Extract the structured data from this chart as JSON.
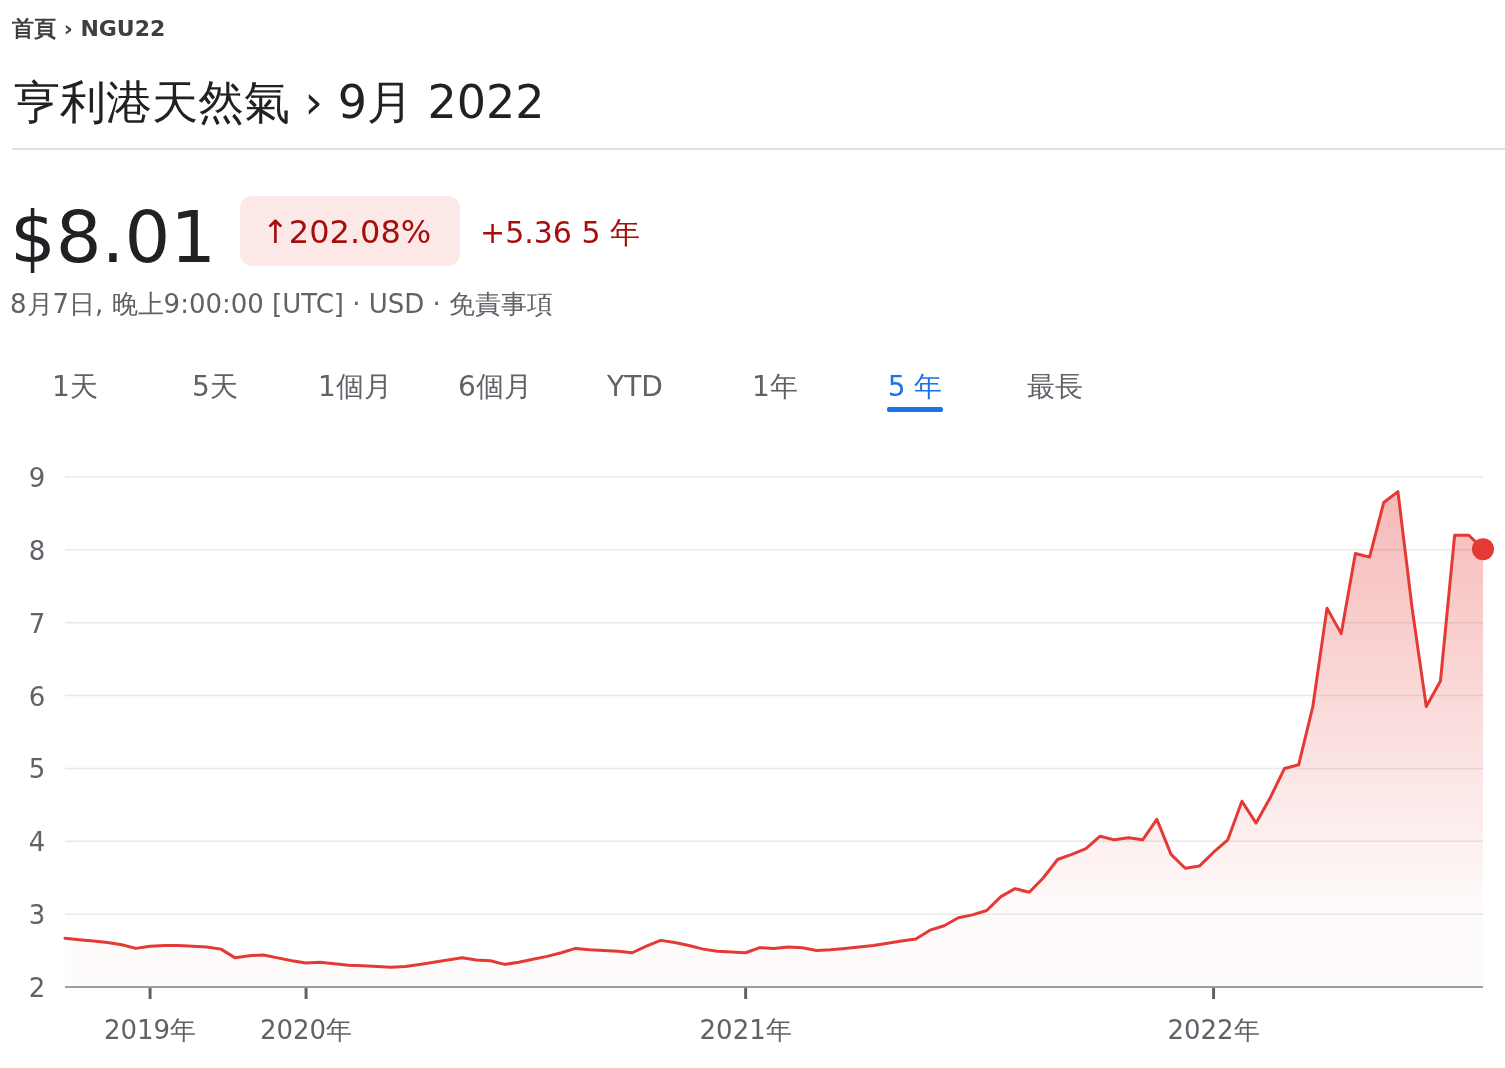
{
  "chart_data": {
    "type": "area",
    "title": "亨利港天然氣 › 9月 2022",
    "subtitle": "8月7日, 晚上9:00:00 [UTC] · USD · 免責事項",
    "annotations": [
      "首頁 › NGU22",
      "$8.01",
      "↑202.08%",
      "+5.36 5 年",
      "1天",
      "5天",
      "1個月",
      "6個月",
      "YTD",
      "1年",
      "5 年",
      "最長"
    ],
    "categories": [
      null,
      null,
      null,
      null,
      null,
      null,
      "2019年",
      null,
      null,
      null,
      null,
      null,
      null,
      null,
      null,
      null,
      null,
      "2020年",
      null,
      null,
      null,
      null,
      null,
      null,
      null,
      null,
      null,
      null,
      null,
      null,
      null,
      null,
      null,
      null,
      null,
      null,
      null,
      null,
      null,
      null,
      null,
      null,
      null,
      null,
      null,
      null,
      null,
      null,
      "2021年",
      null,
      null,
      null,
      null,
      null,
      null,
      null,
      null,
      null,
      null,
      null,
      null,
      null,
      null,
      null,
      null,
      null,
      null,
      null,
      null,
      null,
      null,
      null,
      null,
      null,
      null,
      null,
      null,
      null,
      null,
      null,
      null,
      "2022年",
      null,
      null,
      null,
      null,
      null,
      null,
      null,
      null,
      null,
      null,
      null,
      null,
      null,
      null,
      null,
      null,
      null,
      null,
      null
    ],
    "ylim": [
      2,
      9
    ],
    "yticks": [
      2,
      3,
      4,
      5,
      6,
      7,
      8,
      9
    ],
    "grid": "y",
    "series": [
      {
        "color": "#e53935",
        "values": [
          2.67,
          2.65,
          2.63,
          2.61,
          2.58,
          2.53,
          2.56,
          2.57,
          2.57,
          2.56,
          2.55,
          2.52,
          2.4,
          2.43,
          2.44,
          2.4,
          2.36,
          2.33,
          2.34,
          2.32,
          2.3,
          2.29,
          2.28,
          2.27,
          2.28,
          2.31,
          2.34,
          2.37,
          2.4,
          2.37,
          2.36,
          2.31,
          2.34,
          2.38,
          2.42,
          2.47,
          2.53,
          2.51,
          2.5,
          2.49,
          2.47,
          2.56,
          2.64,
          2.61,
          2.57,
          2.52,
          2.49,
          2.48,
          2.47,
          2.54,
          2.53,
          2.55,
          2.54,
          2.5,
          2.51,
          2.53,
          2.55,
          2.57,
          2.6,
          2.63,
          2.66,
          2.78,
          2.84,
          2.95,
          2.99,
          3.05,
          3.24,
          3.35,
          3.3,
          3.5,
          3.75,
          3.82,
          3.9,
          4.07,
          4.02,
          4.05,
          4.02,
          4.3,
          3.82,
          3.63,
          3.66,
          3.85,
          4.02,
          4.55,
          4.25,
          4.6,
          5.0,
          5.05,
          5.85,
          7.2,
          6.85,
          7.95,
          7.9,
          8.65,
          8.8,
          7.2,
          5.85,
          6.2,
          8.2,
          8.2,
          8.01
        ]
      },
      {
        "type": "scatter",
        "color": "#e53935",
        "values": [
          null,
          null,
          null,
          null,
          null,
          null,
          null,
          null,
          null,
          null,
          null,
          null,
          null,
          null,
          null,
          null,
          null,
          null,
          null,
          null,
          null,
          null,
          null,
          null,
          null,
          null,
          null,
          null,
          null,
          null,
          null,
          null,
          null,
          null,
          null,
          null,
          null,
          null,
          null,
          null,
          null,
          null,
          null,
          null,
          null,
          null,
          null,
          null,
          null,
          null,
          null,
          null,
          null,
          null,
          null,
          null,
          null,
          null,
          null,
          null,
          null,
          null,
          null,
          null,
          null,
          null,
          null,
          null,
          null,
          null,
          null,
          null,
          null,
          null,
          null,
          null,
          null,
          null,
          null,
          null,
          null,
          null,
          null,
          null,
          null,
          null,
          null,
          null,
          null,
          null,
          null,
          null,
          null,
          null,
          null,
          null,
          null,
          null,
          null,
          null,
          8.01
        ]
      }
    ]
  }
}
